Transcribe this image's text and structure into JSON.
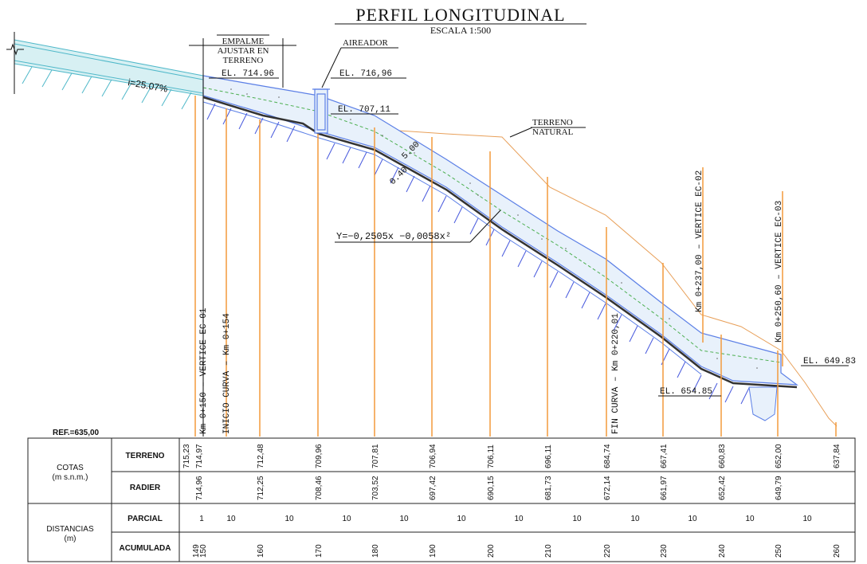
{
  "title": "PERFIL LONGITUDINAL",
  "subtitle": "ESCALA 1:500",
  "labels": {
    "empalme": [
      "EMPALME",
      "AJUSTAR EN",
      "TERRENO"
    ],
    "aireador": "AIREADOR",
    "terreno_natural": [
      "TERRENO",
      "NATURAL"
    ],
    "slope": "i=25.07%",
    "equation": "Y=−0,2505x −0,0058x²",
    "dim_400": "0.40",
    "dim_500": "5.00",
    "ref": "REF.=635,00",
    "elevations": [
      "EL. 714.96",
      "EL. 716,96",
      "EL. 707,11",
      "EL. 654.85",
      "EL. 649.83"
    ]
  },
  "stations": [
    {
      "text": "Km 0+150 – VERTICE EC-01"
    },
    {
      "text": "INICIO CURVA – Km 0+154"
    },
    {
      "text": "FIN CURVA – Km 0+220,01"
    },
    {
      "text": "Km 0+237,00 – VERTICE EC-02"
    },
    {
      "text": "Km 0+250,60 – VERTICE EC-03"
    }
  ],
  "table": {
    "group_cotas": [
      "COTAS",
      "(m s.n.m.)"
    ],
    "group_dist": [
      "DISTANCIAS",
      "(m)"
    ],
    "row_terreno": "TERRENO",
    "row_radier": "RADIER",
    "row_parcial": "PARCIAL",
    "row_acumulada": "ACUMULADA",
    "terreno": [
      {
        "v": "715,23"
      },
      {
        "v": "714,97"
      },
      {
        "v": "712,48"
      },
      {
        "v": "709,96"
      },
      {
        "v": "707,81"
      },
      {
        "v": "706,94"
      },
      {
        "v": "706,11"
      },
      {
        "v": "696,11"
      },
      {
        "v": "684,74"
      },
      {
        "v": "667,41"
      },
      {
        "v": "660,83"
      },
      {
        "v": "652,00"
      },
      {
        "v": "637,84"
      }
    ],
    "radier": [
      {
        "v": "714,96"
      },
      {
        "v": "712,25"
      },
      {
        "v": "708,46"
      },
      {
        "v": "703,52"
      },
      {
        "v": "697,42"
      },
      {
        "v": "690,15"
      },
      {
        "v": "681,73"
      },
      {
        "v": "672,14"
      },
      {
        "v": "661,97"
      },
      {
        "v": "652,42"
      },
      {
        "v": "649,79"
      }
    ],
    "parcial": [
      {
        "v": "1"
      },
      {
        "v": "10"
      },
      {
        "v": "10"
      },
      {
        "v": "10"
      },
      {
        "v": "10"
      },
      {
        "v": "10"
      },
      {
        "v": "10"
      },
      {
        "v": "10"
      },
      {
        "v": "10"
      },
      {
        "v": "10"
      },
      {
        "v": "10"
      },
      {
        "v": "10"
      }
    ],
    "acumulada": [
      {
        "v": "149"
      },
      {
        "v": "150"
      },
      {
        "v": "160"
      },
      {
        "v": "170"
      },
      {
        "v": "180"
      },
      {
        "v": "190"
      },
      {
        "v": "200"
      },
      {
        "v": "210"
      },
      {
        "v": "220"
      },
      {
        "v": "230"
      },
      {
        "v": "240"
      },
      {
        "v": "250"
      },
      {
        "v": "260"
      }
    ]
  },
  "colors": {
    "terrain": "#e8a05a",
    "station_line": "#f39a3c",
    "channel": "#5b7fe6",
    "concrete_fill": "#e8f1fb",
    "green_dash": "#4caf50",
    "hatch": "#4455dd",
    "flow_fill": "#d7f0f3",
    "dark": "#333333"
  }
}
